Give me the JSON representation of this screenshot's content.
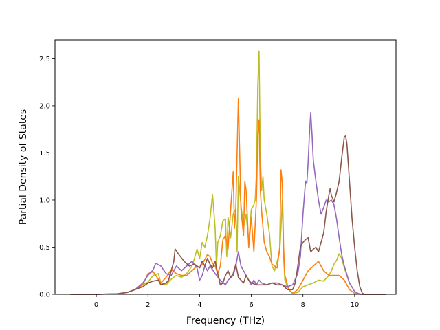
{
  "chart_data": {
    "type": "line",
    "title": "",
    "xlabel": "Frequency (THz)",
    "ylabel": "Partial Density of States",
    "xlim": [
      -1.6,
      11.6
    ],
    "ylim": [
      0,
      2.7
    ],
    "xticks": [
      0,
      2,
      4,
      6,
      8,
      10
    ],
    "xtick_labels": [
      "0",
      "2",
      "4",
      "6",
      "8",
      "10"
    ],
    "yticks": [
      0.0,
      0.5,
      1.0,
      1.5,
      2.0,
      2.5
    ],
    "ytick_labels": [
      "0.0",
      "0.5",
      "1.0",
      "1.5",
      "2.0",
      "2.5"
    ],
    "grid": false,
    "legend": "none",
    "series": [
      {
        "color": "#bcbd22",
        "points": [
          [
            -1.0,
            0
          ],
          [
            0,
            0
          ],
          [
            0.8,
            0.005
          ],
          [
            1.2,
            0.02
          ],
          [
            1.5,
            0.05
          ],
          [
            1.8,
            0.1
          ],
          [
            2.0,
            0.13
          ],
          [
            2.2,
            0.2
          ],
          [
            2.4,
            0.22
          ],
          [
            2.5,
            0.12
          ],
          [
            2.7,
            0.1
          ],
          [
            2.9,
            0.16
          ],
          [
            3.1,
            0.2
          ],
          [
            3.3,
            0.18
          ],
          [
            3.5,
            0.22
          ],
          [
            3.7,
            0.3
          ],
          [
            3.8,
            0.38
          ],
          [
            3.9,
            0.48
          ],
          [
            4.0,
            0.38
          ],
          [
            4.1,
            0.55
          ],
          [
            4.2,
            0.5
          ],
          [
            4.3,
            0.62
          ],
          [
            4.4,
            0.8
          ],
          [
            4.5,
            1.06
          ],
          [
            4.6,
            0.7
          ],
          [
            4.65,
            0.3
          ],
          [
            4.7,
            0.55
          ],
          [
            4.8,
            0.62
          ],
          [
            4.9,
            0.78
          ],
          [
            5.0,
            0.8
          ],
          [
            5.05,
            0.4
          ],
          [
            5.1,
            0.82
          ],
          [
            5.2,
            0.6
          ],
          [
            5.3,
            0.85
          ],
          [
            5.4,
            0.9
          ],
          [
            5.45,
            0.45
          ],
          [
            5.5,
            1.25
          ],
          [
            5.6,
            0.95
          ],
          [
            5.7,
            0.7
          ],
          [
            5.8,
            0.85
          ],
          [
            5.9,
            0.55
          ],
          [
            6.0,
            0.9
          ],
          [
            6.1,
            0.95
          ],
          [
            6.15,
            1.0
          ],
          [
            6.2,
            1.3
          ],
          [
            6.25,
            2.2
          ],
          [
            6.3,
            2.58
          ],
          [
            6.35,
            1.45
          ],
          [
            6.4,
            1.1
          ],
          [
            6.45,
            1.25
          ],
          [
            6.5,
            1.0
          ],
          [
            6.6,
            0.85
          ],
          [
            6.7,
            0.65
          ],
          [
            6.8,
            0.3
          ],
          [
            6.9,
            0.25
          ],
          [
            7.0,
            0.35
          ],
          [
            7.1,
            0.45
          ],
          [
            7.15,
            0.7
          ],
          [
            7.2,
            1.0
          ],
          [
            7.25,
            0.4
          ],
          [
            7.3,
            0.15
          ],
          [
            7.45,
            0.05
          ],
          [
            7.6,
            0.01
          ],
          [
            7.8,
            0.02
          ],
          [
            8.0,
            0.08
          ],
          [
            8.2,
            0.1
          ],
          [
            8.4,
            0.12
          ],
          [
            8.6,
            0.15
          ],
          [
            8.8,
            0.14
          ],
          [
            9.0,
            0.2
          ],
          [
            9.1,
            0.25
          ],
          [
            9.2,
            0.32
          ],
          [
            9.3,
            0.36
          ],
          [
            9.4,
            0.43
          ],
          [
            9.5,
            0.38
          ],
          [
            9.6,
            0.28
          ],
          [
            9.8,
            0.12
          ],
          [
            10.0,
            0.03
          ],
          [
            10.1,
            0.01
          ],
          [
            10.3,
            0
          ],
          [
            11.2,
            0
          ]
        ]
      },
      {
        "color": "#ff7f0e",
        "points": [
          [
            -1.0,
            0
          ],
          [
            0,
            0
          ],
          [
            0.8,
            0.005
          ],
          [
            1.2,
            0.02
          ],
          [
            1.5,
            0.05
          ],
          [
            1.8,
            0.1
          ],
          [
            2.0,
            0.22
          ],
          [
            2.2,
            0.24
          ],
          [
            2.3,
            0.2
          ],
          [
            2.5,
            0.12
          ],
          [
            2.7,
            0.18
          ],
          [
            2.9,
            0.26
          ],
          [
            3.1,
            0.22
          ],
          [
            3.3,
            0.2
          ],
          [
            3.5,
            0.2
          ],
          [
            3.7,
            0.25
          ],
          [
            3.9,
            0.3
          ],
          [
            4.0,
            0.28
          ],
          [
            4.1,
            0.32
          ],
          [
            4.3,
            0.42
          ],
          [
            4.4,
            0.4
          ],
          [
            4.5,
            0.33
          ],
          [
            4.6,
            0.3
          ],
          [
            4.7,
            0.22
          ],
          [
            4.8,
            0.3
          ],
          [
            4.9,
            0.58
          ],
          [
            5.0,
            0.62
          ],
          [
            5.1,
            0.48
          ],
          [
            5.2,
            0.9
          ],
          [
            5.3,
            1.3
          ],
          [
            5.35,
            0.7
          ],
          [
            5.4,
            0.9
          ],
          [
            5.45,
            1.5
          ],
          [
            5.5,
            2.08
          ],
          [
            5.55,
            1.5
          ],
          [
            5.6,
            0.9
          ],
          [
            5.7,
            0.62
          ],
          [
            5.75,
            1.2
          ],
          [
            5.8,
            1.1
          ],
          [
            5.9,
            0.5
          ],
          [
            6.0,
            0.82
          ],
          [
            6.1,
            0.45
          ],
          [
            6.2,
            1.02
          ],
          [
            6.25,
            1.68
          ],
          [
            6.3,
            1.85
          ],
          [
            6.35,
            1.1
          ],
          [
            6.4,
            0.88
          ],
          [
            6.5,
            0.55
          ],
          [
            6.6,
            0.45
          ],
          [
            6.7,
            0.4
          ],
          [
            6.8,
            0.32
          ],
          [
            6.9,
            0.3
          ],
          [
            7.0,
            0.28
          ],
          [
            7.1,
            0.5
          ],
          [
            7.15,
            1.32
          ],
          [
            7.2,
            1.18
          ],
          [
            7.25,
            0.5
          ],
          [
            7.3,
            0.2
          ],
          [
            7.45,
            0.05
          ],
          [
            7.6,
            0.01
          ],
          [
            7.8,
            0.05
          ],
          [
            8.0,
            0.15
          ],
          [
            8.2,
            0.25
          ],
          [
            8.4,
            0.3
          ],
          [
            8.6,
            0.35
          ],
          [
            8.8,
            0.25
          ],
          [
            9.0,
            0.2
          ],
          [
            9.2,
            0.2
          ],
          [
            9.4,
            0.2
          ],
          [
            9.6,
            0.15
          ],
          [
            9.8,
            0.05
          ],
          [
            10.0,
            0.01
          ],
          [
            10.3,
            0
          ],
          [
            11.2,
            0
          ]
        ]
      },
      {
        "color": "#9467bd",
        "points": [
          [
            -1.0,
            0
          ],
          [
            0,
            0
          ],
          [
            0.8,
            0.005
          ],
          [
            1.2,
            0.02
          ],
          [
            1.5,
            0.05
          ],
          [
            1.8,
            0.12
          ],
          [
            2.0,
            0.2
          ],
          [
            2.2,
            0.26
          ],
          [
            2.3,
            0.33
          ],
          [
            2.5,
            0.3
          ],
          [
            2.7,
            0.22
          ],
          [
            2.9,
            0.2
          ],
          [
            3.1,
            0.3
          ],
          [
            3.3,
            0.25
          ],
          [
            3.5,
            0.3
          ],
          [
            3.7,
            0.35
          ],
          [
            3.9,
            0.28
          ],
          [
            4.0,
            0.15
          ],
          [
            4.1,
            0.2
          ],
          [
            4.2,
            0.3
          ],
          [
            4.3,
            0.25
          ],
          [
            4.4,
            0.3
          ],
          [
            4.6,
            0.22
          ],
          [
            4.8,
            0.15
          ],
          [
            5.0,
            0.1
          ],
          [
            5.1,
            0.15
          ],
          [
            5.3,
            0.2
          ],
          [
            5.4,
            0.3
          ],
          [
            5.5,
            0.45
          ],
          [
            5.6,
            0.3
          ],
          [
            5.7,
            0.25
          ],
          [
            5.8,
            0.2
          ],
          [
            5.9,
            0.15
          ],
          [
            6.0,
            0.1
          ],
          [
            6.1,
            0.15
          ],
          [
            6.2,
            0.1
          ],
          [
            6.3,
            0.15
          ],
          [
            6.4,
            0.12
          ],
          [
            6.6,
            0.1
          ],
          [
            6.8,
            0.12
          ],
          [
            7.0,
            0.12
          ],
          [
            7.2,
            0.1
          ],
          [
            7.4,
            0.08
          ],
          [
            7.6,
            0.1
          ],
          [
            7.8,
            0.22
          ],
          [
            7.9,
            0.4
          ],
          [
            8.0,
            0.85
          ],
          [
            8.1,
            1.2
          ],
          [
            8.15,
            1.18
          ],
          [
            8.2,
            1.4
          ],
          [
            8.25,
            1.7
          ],
          [
            8.3,
            1.93
          ],
          [
            8.35,
            1.7
          ],
          [
            8.4,
            1.42
          ],
          [
            8.5,
            1.2
          ],
          [
            8.6,
            1.0
          ],
          [
            8.7,
            0.85
          ],
          [
            8.8,
            0.92
          ],
          [
            8.9,
            1.0
          ],
          [
            9.0,
            0.98
          ],
          [
            9.1,
            1.0
          ],
          [
            9.2,
            0.95
          ],
          [
            9.3,
            0.8
          ],
          [
            9.4,
            0.6
          ],
          [
            9.5,
            0.42
          ],
          [
            9.6,
            0.3
          ],
          [
            9.8,
            0.12
          ],
          [
            10.0,
            0.03
          ],
          [
            10.2,
            0
          ],
          [
            11.2,
            0
          ]
        ]
      },
      {
        "color": "#8c564b",
        "points": [
          [
            -1.0,
            0
          ],
          [
            0,
            0
          ],
          [
            0.8,
            0.005
          ],
          [
            1.2,
            0.02
          ],
          [
            1.5,
            0.05
          ],
          [
            1.8,
            0.08
          ],
          [
            2.0,
            0.12
          ],
          [
            2.2,
            0.14
          ],
          [
            2.4,
            0.15
          ],
          [
            2.5,
            0.1
          ],
          [
            2.7,
            0.12
          ],
          [
            2.8,
            0.15
          ],
          [
            2.9,
            0.25
          ],
          [
            3.0,
            0.35
          ],
          [
            3.05,
            0.48
          ],
          [
            3.2,
            0.42
          ],
          [
            3.4,
            0.35
          ],
          [
            3.6,
            0.3
          ],
          [
            3.8,
            0.32
          ],
          [
            4.0,
            0.28
          ],
          [
            4.1,
            0.35
          ],
          [
            4.2,
            0.3
          ],
          [
            4.3,
            0.38
          ],
          [
            4.4,
            0.32
          ],
          [
            4.5,
            0.28
          ],
          [
            4.6,
            0.35
          ],
          [
            4.7,
            0.22
          ],
          [
            4.8,
            0.1
          ],
          [
            4.9,
            0.12
          ],
          [
            5.0,
            0.2
          ],
          [
            5.1,
            0.25
          ],
          [
            5.2,
            0.18
          ],
          [
            5.3,
            0.22
          ],
          [
            5.4,
            0.32
          ],
          [
            5.5,
            0.18
          ],
          [
            5.6,
            0.15
          ],
          [
            5.7,
            0.12
          ],
          [
            5.8,
            0.2
          ],
          [
            5.9,
            0.15
          ],
          [
            6.0,
            0.12
          ],
          [
            6.2,
            0.1
          ],
          [
            6.4,
            0.1
          ],
          [
            6.6,
            0.1
          ],
          [
            6.8,
            0.12
          ],
          [
            7.0,
            0.1
          ],
          [
            7.2,
            0.1
          ],
          [
            7.4,
            0.05
          ],
          [
            7.6,
            0.05
          ],
          [
            7.7,
            0.12
          ],
          [
            7.8,
            0.3
          ],
          [
            7.9,
            0.5
          ],
          [
            8.0,
            0.55
          ],
          [
            8.1,
            0.58
          ],
          [
            8.2,
            0.6
          ],
          [
            8.3,
            0.45
          ],
          [
            8.4,
            0.48
          ],
          [
            8.5,
            0.5
          ],
          [
            8.6,
            0.45
          ],
          [
            8.7,
            0.55
          ],
          [
            8.8,
            0.65
          ],
          [
            8.9,
            0.88
          ],
          [
            9.0,
            1.05
          ],
          [
            9.05,
            1.12
          ],
          [
            9.1,
            1.05
          ],
          [
            9.2,
            0.98
          ],
          [
            9.3,
            1.08
          ],
          [
            9.4,
            1.2
          ],
          [
            9.5,
            1.45
          ],
          [
            9.6,
            1.67
          ],
          [
            9.65,
            1.68
          ],
          [
            9.7,
            1.6
          ],
          [
            9.8,
            1.2
          ],
          [
            9.9,
            0.8
          ],
          [
            10.0,
            0.5
          ],
          [
            10.1,
            0.25
          ],
          [
            10.2,
            0.08
          ],
          [
            10.3,
            0.01
          ],
          [
            10.4,
            0
          ],
          [
            11.2,
            0
          ]
        ]
      }
    ]
  }
}
